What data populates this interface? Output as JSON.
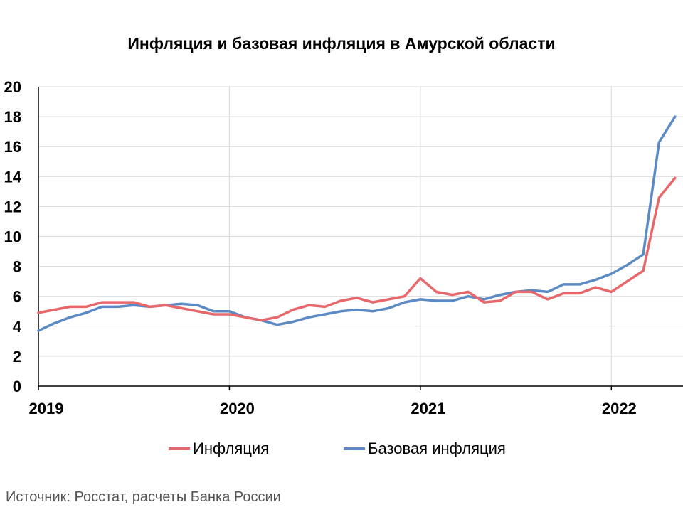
{
  "chart_data": {
    "type": "line",
    "title": "Инфляция и базовая инфляция в Амурской области",
    "xlabel": "",
    "ylabel": "",
    "ylim": [
      0,
      20
    ],
    "yticks": [
      "0",
      "2",
      "4",
      "6",
      "8",
      "10",
      "12",
      "14",
      "16",
      "18",
      "20"
    ],
    "xticks": [
      {
        "label": "2019",
        "t": 0
      },
      {
        "label": "2020",
        "t": 12
      },
      {
        "label": "2021",
        "t": 24
      },
      {
        "label": "2022",
        "t": 36
      }
    ],
    "xlim": [
      0,
      40.5
    ],
    "grid": true,
    "legend": "bottom",
    "series": [
      {
        "name": "Инфляция",
        "color": "#E8676A",
        "x": [
          0,
          1,
          2,
          3,
          4,
          5,
          6,
          7,
          8,
          9,
          10,
          11,
          12,
          13,
          14,
          15,
          16,
          17,
          18,
          19,
          20,
          21,
          22,
          23,
          24,
          25,
          26,
          27,
          28,
          29,
          30,
          31,
          32,
          33,
          34,
          35,
          36,
          37,
          38,
          39,
          40
        ],
        "values": [
          4.9,
          5.1,
          5.3,
          5.3,
          5.6,
          5.6,
          5.6,
          5.3,
          5.4,
          5.2,
          5.0,
          4.8,
          4.8,
          4.6,
          4.4,
          4.6,
          5.1,
          5.4,
          5.3,
          5.7,
          5.9,
          5.6,
          5.8,
          6.0,
          7.2,
          6.3,
          6.1,
          6.3,
          5.6,
          5.7,
          6.3,
          6.3,
          5.8,
          6.2,
          6.2,
          6.6,
          6.3,
          7.0,
          7.7,
          12.6,
          13.9
        ]
      },
      {
        "name": "Базовая инфляция",
        "color": "#5B8AC4",
        "x": [
          0,
          1,
          2,
          3,
          4,
          5,
          6,
          7,
          8,
          9,
          10,
          11,
          12,
          13,
          14,
          15,
          16,
          17,
          18,
          19,
          20,
          21,
          22,
          23,
          24,
          25,
          26,
          27,
          28,
          29,
          30,
          31,
          32,
          33,
          34,
          35,
          36,
          37,
          38,
          39,
          40
        ],
        "values": [
          3.7,
          4.2,
          4.6,
          4.9,
          5.3,
          5.3,
          5.4,
          5.3,
          5.4,
          5.5,
          5.4,
          5.0,
          5.0,
          4.6,
          4.4,
          4.1,
          4.3,
          4.6,
          4.8,
          5.0,
          5.1,
          5.0,
          5.2,
          5.6,
          5.8,
          5.7,
          5.7,
          6.0,
          5.8,
          6.1,
          6.3,
          6.4,
          6.3,
          6.8,
          6.8,
          7.1,
          7.5,
          8.1,
          8.8,
          16.3,
          18.0
        ]
      }
    ]
  },
  "source": "Источник: Росстат, расчеты Банка России"
}
